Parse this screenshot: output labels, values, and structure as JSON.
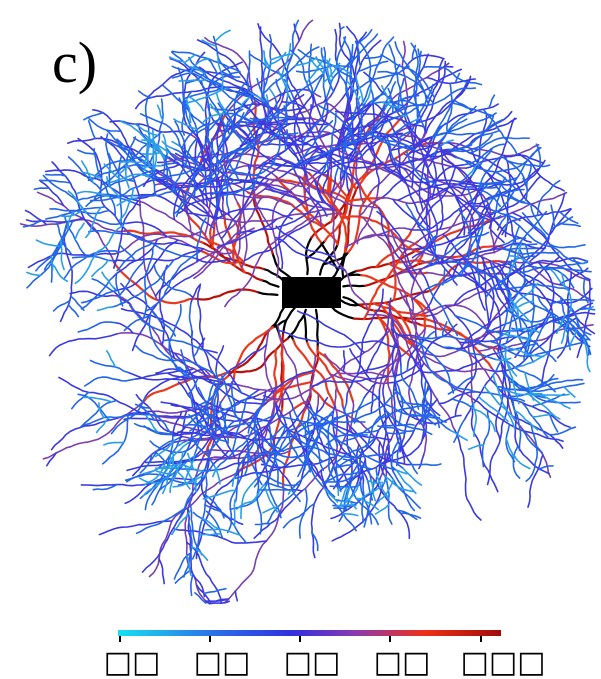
{
  "figure": {
    "panel_label": "c)",
    "colorbar": {
      "tick_labels": [
        "□□",
        "□□",
        "□□",
        "□□",
        "□□□"
      ]
    }
  }
}
